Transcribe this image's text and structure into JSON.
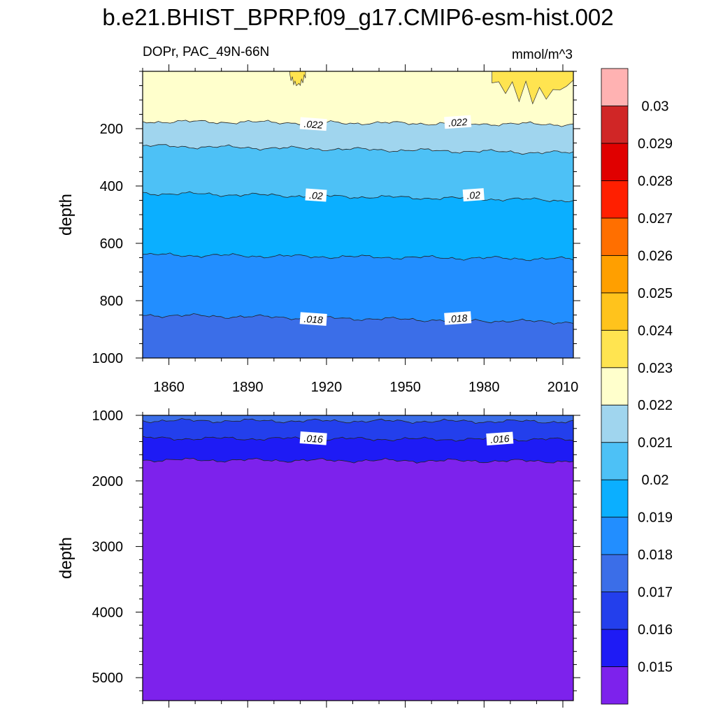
{
  "title": "b.e21.BHIST_BPRP.f09_g17.CMIP6-esm-hist.002",
  "subtitle_left": "DOPr, PAC_49N-66N",
  "subtitle_right": "mmol/m^3",
  "chart_data": [
    {
      "type": "contour",
      "panel": "upper",
      "xlabel": "",
      "ylabel": "depth",
      "x_range": [
        1850,
        2014
      ],
      "y_range": [
        0,
        1000
      ],
      "y_reversed": true,
      "x_ticks": [
        "1860",
        "1890",
        "1920",
        "1950",
        "1980",
        "2010"
      ],
      "x_tick_values": [
        1860,
        1890,
        1920,
        1950,
        1980,
        2010
      ],
      "y_ticks": [
        "200",
        "400",
        "600",
        "800",
        "1000"
      ],
      "y_tick_values": [
        200,
        400,
        600,
        800,
        1000
      ],
      "contour_lines": [
        {
          "level": 0.022,
          "depth_start": 175,
          "depth_end": 185
        },
        {
          "level": 0.021,
          "depth_start": 260,
          "depth_end": 285
        },
        {
          "level": 0.02,
          "depth_start": 425,
          "depth_end": 450
        },
        {
          "level": 0.019,
          "depth_start": 640,
          "depth_end": 655
        },
        {
          "level": 0.018,
          "depth_start": 850,
          "depth_end": 875
        }
      ],
      "bands": [
        {
          "from": 0,
          "to_level": 0.022,
          "color": "#FFFFCC"
        },
        {
          "from_level": 0.022,
          "to_level": 0.021,
          "color": "#A0D5EE"
        },
        {
          "from_level": 0.021,
          "to_level": 0.02,
          "color": "#4DC1F6"
        },
        {
          "from_level": 0.02,
          "to_level": 0.019,
          "color": "#0BAFFF"
        },
        {
          "from_level": 0.019,
          "to_level": 0.018,
          "color": "#228EFF"
        },
        {
          "from_level": 0.018,
          "to": 1000,
          "color": "#3B6EE8"
        }
      ],
      "high_value_patches": [
        {
          "level": 0.023,
          "x_range": [
            1906,
            1912
          ],
          "depth_range": [
            0,
            60
          ],
          "color": "#FFE450"
        },
        {
          "level": 0.023,
          "x_range": [
            1983,
            2014
          ],
          "depth_range": [
            0,
            115
          ],
          "color": "#FFE450"
        }
      ],
      "contour_labels": [
        {
          "text": ".022",
          "x": 1915,
          "depth": 185
        },
        {
          "text": ".022",
          "x": 1970,
          "depth": 178
        },
        {
          "text": ".02",
          "x": 1916,
          "depth": 433
        },
        {
          "text": ".02",
          "x": 1976,
          "depth": 432
        },
        {
          "text": ".018",
          "x": 1915,
          "depth": 865
        },
        {
          "text": ".018",
          "x": 1970,
          "depth": 862
        }
      ]
    },
    {
      "type": "contour",
      "panel": "lower",
      "xlabel": "",
      "ylabel": "depth",
      "x_range": [
        1850,
        2014
      ],
      "y_range": [
        1000,
        5350
      ],
      "y_reversed": true,
      "x_tick_values": [
        1860,
        1890,
        1920,
        1950,
        1980,
        2010
      ],
      "y_ticks": [
        "1000",
        "2000",
        "3000",
        "4000",
        "5000"
      ],
      "y_tick_values": [
        1000,
        2000,
        3000,
        4000,
        5000
      ],
      "contour_lines": [
        {
          "level": 0.017,
          "depth_start": 1080,
          "depth_end": 1095
        },
        {
          "level": 0.016,
          "depth_start": 1350,
          "depth_end": 1370
        },
        {
          "level": 0.015,
          "depth_start": 1680,
          "depth_end": 1700
        }
      ],
      "bands": [
        {
          "from": 1000,
          "to_level": 0.017,
          "color": "#3B6EE8"
        },
        {
          "from_level": 0.017,
          "to_level": 0.016,
          "color": "#233FEC"
        },
        {
          "from_level": 0.016,
          "to_level": 0.015,
          "color": "#1E1BF5"
        },
        {
          "from_level": 0.015,
          "to": 5350,
          "color": "#7D22EC"
        }
      ],
      "contour_labels": [
        {
          "text": ".016",
          "x": 1915,
          "depth": 1355
        },
        {
          "text": ".016",
          "x": 1986,
          "depth": 1360
        }
      ]
    }
  ],
  "colorbar": {
    "colors": [
      "#7D22EC",
      "#1E1BF5",
      "#233FEC",
      "#3B6EE8",
      "#228EFF",
      "#0BAFFF",
      "#4DC1F6",
      "#A0D5EE",
      "#FFFFCC",
      "#FFE450",
      "#FFC31C",
      "#FF9F00",
      "#FF6F00",
      "#FF1F00",
      "#E00000",
      "#D02626",
      "#FFB2B2"
    ],
    "labels": [
      "0.015",
      "0.016",
      "0.017",
      "0.018",
      "0.019",
      "0.02",
      "0.021",
      "0.022",
      "0.023",
      "0.024",
      "0.025",
      "0.026",
      "0.027",
      "0.028",
      "0.029",
      "0.03"
    ]
  }
}
